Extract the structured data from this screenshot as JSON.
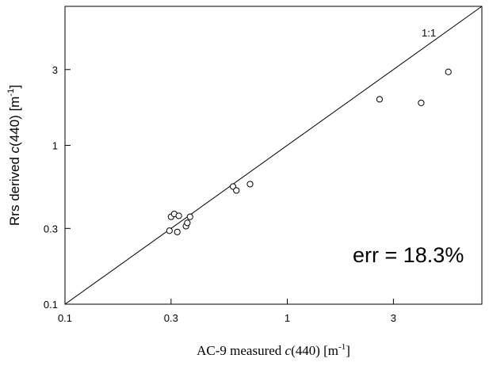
{
  "chart_data": {
    "type": "scatter",
    "x_scale": "log",
    "y_scale": "log",
    "xlim": [
      0.1,
      7.5
    ],
    "ylim": [
      0.1,
      7.5
    ],
    "x_ticks": [
      0.1,
      0.3,
      1,
      3
    ],
    "x_tick_labels": [
      "0.1",
      "0.3",
      "1",
      "3"
    ],
    "y_ticks": [
      0.1,
      0.3,
      1,
      3
    ],
    "y_tick_labels": [
      "0.1",
      "0.3",
      "1",
      "3"
    ],
    "xlabel": {
      "prefix": "AC-9 measured  ",
      "italic": "c",
      "mid": "(440) [m",
      "sup": "-1",
      "suffix": "]"
    },
    "ylabel": {
      "prefix": "Rrs derived ",
      "italic": "c",
      "mid": "(440)  [m",
      "sup": "-1",
      "suffix": "]"
    },
    "reference_line": {
      "label": "1:1",
      "slope": 1
    },
    "annotation": "err = 18.3%",
    "grid": false,
    "points": [
      {
        "x": 0.295,
        "y": 0.29
      },
      {
        "x": 0.3,
        "y": 0.355
      },
      {
        "x": 0.31,
        "y": 0.37
      },
      {
        "x": 0.32,
        "y": 0.285
      },
      {
        "x": 0.325,
        "y": 0.36
      },
      {
        "x": 0.35,
        "y": 0.31
      },
      {
        "x": 0.355,
        "y": 0.325
      },
      {
        "x": 0.365,
        "y": 0.355
      },
      {
        "x": 0.57,
        "y": 0.55
      },
      {
        "x": 0.59,
        "y": 0.52
      },
      {
        "x": 0.68,
        "y": 0.57
      },
      {
        "x": 2.6,
        "y": 1.95
      },
      {
        "x": 4.0,
        "y": 1.85
      },
      {
        "x": 5.3,
        "y": 2.9
      }
    ]
  }
}
